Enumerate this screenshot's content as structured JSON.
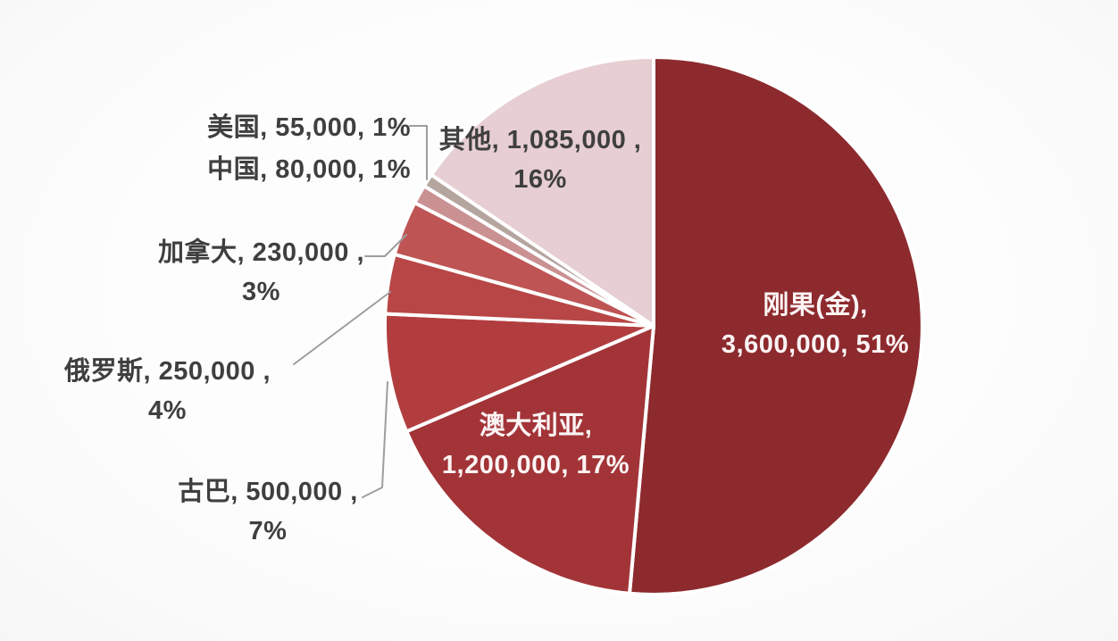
{
  "chart_data": {
    "type": "pie",
    "title": "",
    "legend": "none",
    "total_value": 7000000,
    "start_angle_deg": 0,
    "direction": "clockwise",
    "layout": {
      "background": "#fcfbfb",
      "slice_border_color": "#ffffff",
      "leader_line_color": "#9e9e9e",
      "outside_label_color": "#3f3f3f",
      "inside_label_color": "#fbf4f4"
    },
    "slices": [
      {
        "name": "刚果(金)",
        "value": 3600000,
        "pct": "51%",
        "color": "#8d2a2e",
        "label_position": "inside",
        "label_lines": [
          "刚果(金),",
          "3,600,000, 51%"
        ]
      },
      {
        "name": "澳大利亚",
        "value": 1200000,
        "pct": "17%",
        "color": "#a23438",
        "label_position": "inside",
        "label_lines": [
          "澳大利亚,",
          "1,200,000, 17%"
        ]
      },
      {
        "name": "古巴",
        "value": 500000,
        "pct": "7%",
        "color": "#b23d3f",
        "label_position": "outside",
        "label_lines": [
          "古巴, 500,000 ,",
          "7%"
        ]
      },
      {
        "name": "俄罗斯",
        "value": 250000,
        "pct": "4%",
        "color": "#b84646",
        "label_position": "outside",
        "label_lines": [
          "俄罗斯, 250,000 ,",
          "4%"
        ]
      },
      {
        "name": "加拿大",
        "value": 230000,
        "pct": "3%",
        "color": "#bf5454",
        "label_position": "outside",
        "label_lines": [
          "加拿大, 230,000 ,",
          "3%"
        ]
      },
      {
        "name": "中国",
        "value": 80000,
        "pct": "1%",
        "color": "#ca9193",
        "label_position": "outside",
        "label_lines": [
          "中国, 80,000, 1%"
        ]
      },
      {
        "name": "美国",
        "value": 55000,
        "pct": "1%",
        "color": "#b4a59e",
        "label_position": "outside",
        "label_lines": [
          "美国, 55,000, 1%"
        ]
      },
      {
        "name": "其他",
        "value": 1085000,
        "pct": "16%",
        "color": "#e6ced2",
        "label_position": "outside",
        "label_lines": [
          "其他, 1,085,000 ,",
          "16%"
        ]
      }
    ]
  }
}
